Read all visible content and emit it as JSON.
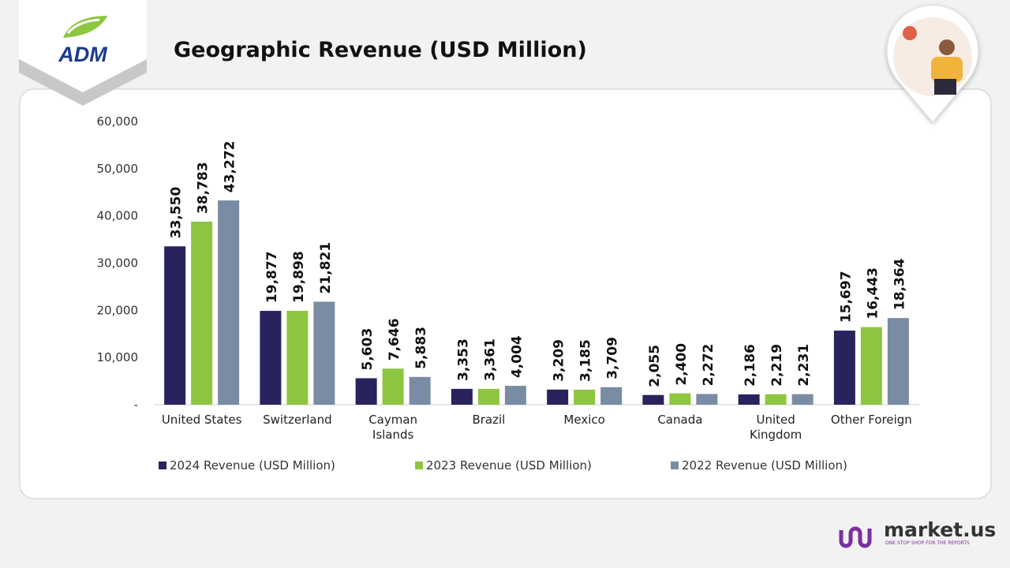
{
  "logo": {
    "text": "ADM"
  },
  "footer": {
    "brand": "market.us",
    "tagline": "ONE STOP SHOP FOR THE REPORTS"
  },
  "chart_data": {
    "type": "bar",
    "title": "Geographic Revenue (USD Million)",
    "categories": [
      "United States",
      "Switzerland",
      "Cayman Islands",
      "Brazil",
      "Mexico",
      "Canada",
      "United Kingdom",
      "Other Foreign"
    ],
    "series": [
      {
        "name": "2024 Revenue (USD Million)",
        "color": "#28235c",
        "values": [
          33550,
          19877,
          5603,
          3353,
          3209,
          2055,
          2186,
          15697
        ],
        "value_labels": [
          "33,550",
          "19,877",
          "5,603",
          "3,353",
          "3,209",
          "2,055",
          "2,186",
          "15,697"
        ]
      },
      {
        "name": "2023 Revenue (USD Million)",
        "color": "#8dc63f",
        "values": [
          38783,
          19898,
          7646,
          3361,
          3185,
          2400,
          2219,
          16443
        ],
        "value_labels": [
          "38,783",
          "19,898",
          "7,646",
          "3,361",
          "3,185",
          "2,400",
          "2,219",
          "16,443"
        ]
      },
      {
        "name": "2022 Revenue (USD Million)",
        "color": "#7a8ca3",
        "values": [
          43272,
          21821,
          5883,
          4004,
          3709,
          2272,
          2231,
          18364
        ],
        "value_labels": [
          "43,272",
          "21,821",
          "5,883",
          "4,004",
          "3,709",
          "2,272",
          "2,231",
          "18,364"
        ]
      }
    ],
    "ylim": [
      0,
      60000
    ],
    "yticks": [
      {
        "value": 0,
        "label": "-"
      },
      {
        "value": 10000,
        "label": "10,000"
      },
      {
        "value": 20000,
        "label": "20,000"
      },
      {
        "value": 30000,
        "label": "30,000"
      },
      {
        "value": 40000,
        "label": "40,000"
      },
      {
        "value": 50000,
        "label": "50,000"
      },
      {
        "value": 60000,
        "label": "60,000"
      }
    ],
    "grid": false,
    "legend": "bottom"
  }
}
